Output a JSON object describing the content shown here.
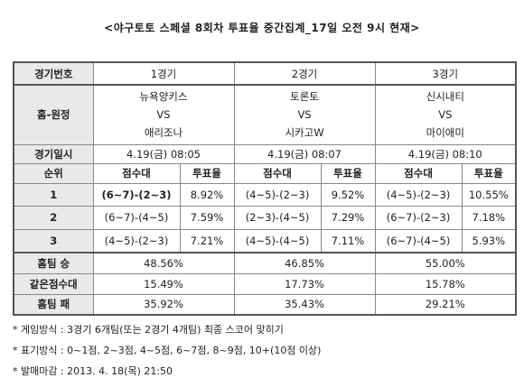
{
  "title": "<야구토토 스페셜 8회차 투표율 중간집계_17일 오전 9시 현재>",
  "table": {
    "labels": {
      "game_no": "경기번호",
      "home_away": "홈-원정",
      "game_date": "경기일시",
      "rank": "순위",
      "score_range": "점수대",
      "vote_rate": "투표율",
      "home_win": "홈팀 승",
      "same_range": "같은점수대",
      "home_loss": "홈팀 패"
    },
    "games": [
      {
        "no": "1경기",
        "home": "뉴욕양키스",
        "vs": "VS",
        "away": "애리조나",
        "date": "4.19(금) 08:05",
        "ranks": [
          {
            "score": "(6~7)-(2~3)",
            "rate": "8.92%"
          },
          {
            "score": "(6~7)-(4~5)",
            "rate": "7.59%"
          },
          {
            "score": "(4~5)-(2~3)",
            "rate": "7.21%"
          }
        ],
        "home_win": "48.56%",
        "same_range": "15.49%",
        "home_loss": "35.92%"
      },
      {
        "no": "2경기",
        "home": "토론토",
        "vs": "VS",
        "away": "시카고W",
        "date": "4.19(금) 08:07",
        "ranks": [
          {
            "score": "(4~5)-(2~3)",
            "rate": "9.52%"
          },
          {
            "score": "(2~3)-(4~5)",
            "rate": "7.29%"
          },
          {
            "score": "(4~5)-(4~5)",
            "rate": "7.11%"
          }
        ],
        "home_win": "46.85%",
        "same_range": "17.73%",
        "home_loss": "35.43%"
      },
      {
        "no": "3경기",
        "home": "신시내티",
        "vs": "VS",
        "away": "마이애미",
        "date": "4.19(금) 08:10",
        "ranks": [
          {
            "score": "(4~5)-(2~3)",
            "rate": "10.55%"
          },
          {
            "score": "(6~7)-(2~3)",
            "rate": "7.18%"
          },
          {
            "score": "(6~7)-(4~5)",
            "rate": "5.93%"
          }
        ],
        "home_win": "55.00%",
        "same_range": "15.78%",
        "home_loss": "29.21%"
      }
    ],
    "rank_numbers": [
      "1",
      "2",
      "3"
    ]
  },
  "notes": [
    "* 게임방식 : 3경기 6개팀(또는 2경기 4개팀) 최종 스코어 맞히기",
    "* 표기방식 : 0~1점, 2~3점, 4~5점, 6~7점, 8~9점, 10+(10점 이상)",
    "* 발매마감 : 2013. 4. 18(목) 21:50"
  ]
}
